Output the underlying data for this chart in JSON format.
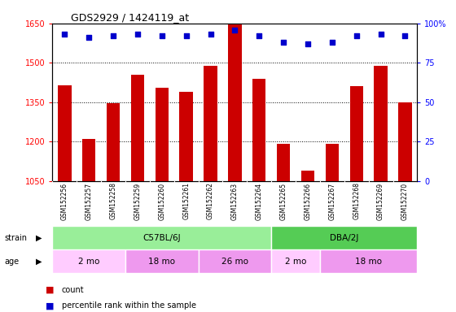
{
  "title": "GDS2929 / 1424119_at",
  "samples": [
    "GSM152256",
    "GSM152257",
    "GSM152258",
    "GSM152259",
    "GSM152260",
    "GSM152261",
    "GSM152262",
    "GSM152263",
    "GSM152264",
    "GSM152265",
    "GSM152266",
    "GSM152267",
    "GSM152268",
    "GSM152269",
    "GSM152270"
  ],
  "counts": [
    1415,
    1210,
    1345,
    1455,
    1405,
    1390,
    1490,
    1650,
    1440,
    1190,
    1090,
    1190,
    1410,
    1490,
    1350
  ],
  "percentiles": [
    93,
    91,
    92,
    93,
    92,
    92,
    93,
    96,
    92,
    88,
    87,
    88,
    92,
    93,
    92
  ],
  "ylim_left": [
    1050,
    1650
  ],
  "ylim_right": [
    0,
    100
  ],
  "yticks_left": [
    1050,
    1200,
    1350,
    1500,
    1650
  ],
  "yticks_right": [
    0,
    25,
    50,
    75,
    100
  ],
  "bar_color": "#cc0000",
  "dot_color": "#0000cc",
  "bg_color": "#ffffff",
  "strain_groups": [
    {
      "label": "C57BL/6J",
      "start": 0,
      "end": 8,
      "color": "#99ee99"
    },
    {
      "label": "DBA/2J",
      "start": 9,
      "end": 14,
      "color": "#55cc55"
    }
  ],
  "age_groups": [
    {
      "label": "2 mo",
      "start": 0,
      "end": 2,
      "color": "#ffccff"
    },
    {
      "label": "18 mo",
      "start": 3,
      "end": 5,
      "color": "#ee99ee"
    },
    {
      "label": "26 mo",
      "start": 6,
      "end": 8,
      "color": "#ee99ee"
    },
    {
      "label": "2 mo",
      "start": 9,
      "end": 10,
      "color": "#ffccff"
    },
    {
      "label": "18 mo",
      "start": 11,
      "end": 14,
      "color": "#ee99ee"
    }
  ],
  "xlabel_area_color": "#cccccc",
  "strain_label": "strain",
  "age_label": "age"
}
